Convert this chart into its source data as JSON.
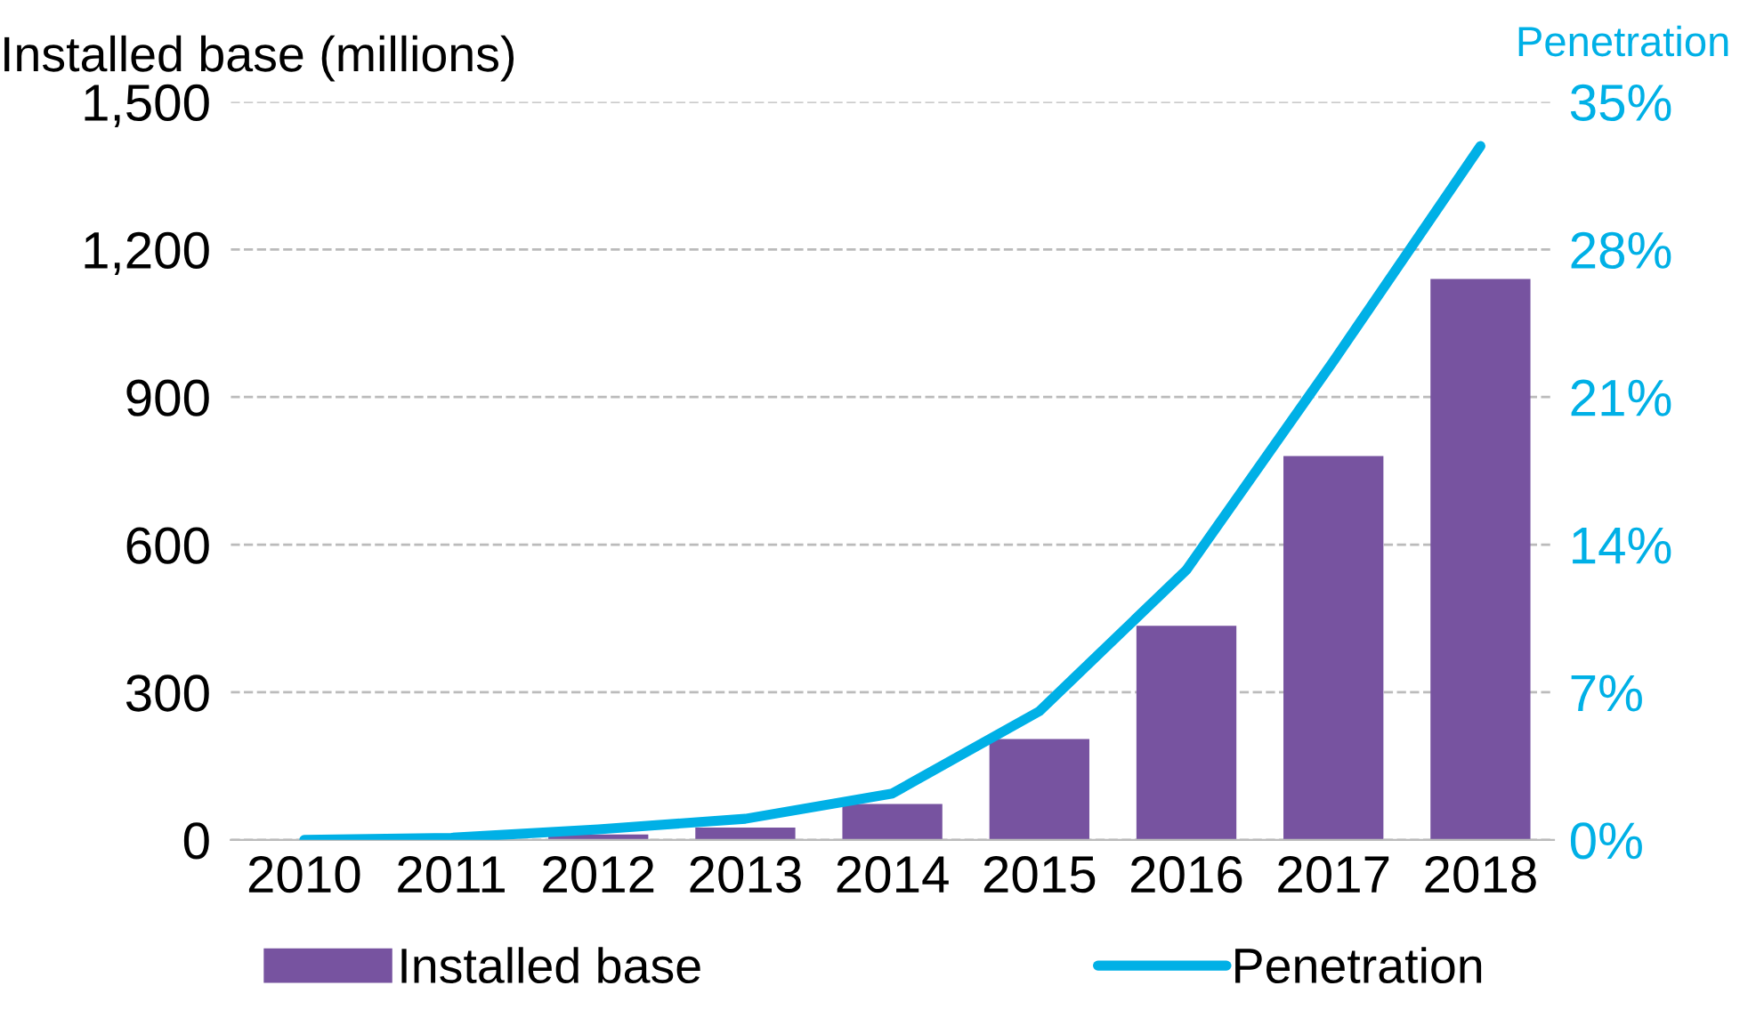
{
  "chart_data": {
    "type": "bar",
    "ylabel": "Installed base (millions)",
    "y2label": "Penetration",
    "categories": [
      "2010",
      "2011",
      "2012",
      "2013",
      "2014",
      "2015",
      "2016",
      "2017",
      "2018"
    ],
    "series": [
      {
        "name": "Installed base",
        "color": "#7753a0",
        "values": [
          null,
          null,
          11,
          25,
          73,
          205,
          435,
          780,
          1140
        ]
      },
      {
        "name": "Penetration",
        "type": "line",
        "axis": "y2",
        "color": "#00b0e6",
        "values": [
          0,
          0.1,
          0.5,
          1.0,
          2.2,
          6.1,
          12.8,
          22.7,
          32.9
        ]
      }
    ],
    "ylim": [
      0,
      1500
    ],
    "yticks": [
      {
        "value": 0,
        "label": "0"
      },
      {
        "value": 300,
        "label": "300"
      },
      {
        "value": 600,
        "label": "600"
      },
      {
        "value": 900,
        "label": "900"
      },
      {
        "value": 1200,
        "label": "1,200"
      },
      {
        "value": 1500,
        "label": "1,500"
      }
    ],
    "y2lim": [
      0,
      35
    ],
    "y2ticks": [
      {
        "value": 0,
        "label": "0%"
      },
      {
        "value": 7,
        "label": "7%"
      },
      {
        "value": 14,
        "label": "14%"
      },
      {
        "value": 21,
        "label": "21%"
      },
      {
        "value": 28,
        "label": "28%"
      },
      {
        "value": 35,
        "label": "35%"
      }
    ],
    "grid": "y",
    "legend": "bottom",
    "marker": "none",
    "line_style": "solid"
  }
}
